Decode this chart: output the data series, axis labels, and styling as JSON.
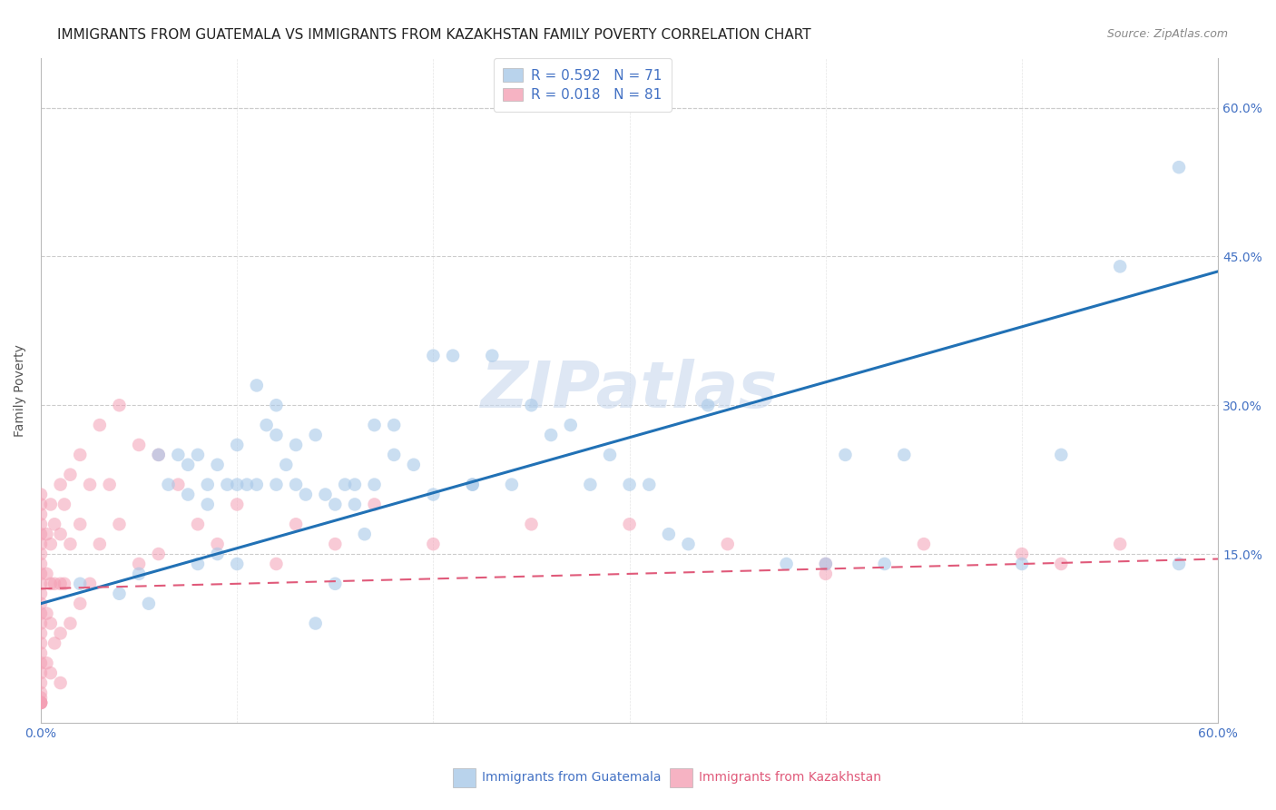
{
  "title": "IMMIGRANTS FROM GUATEMALA VS IMMIGRANTS FROM KAZAKHSTAN FAMILY POVERTY CORRELATION CHART",
  "source": "Source: ZipAtlas.com",
  "xlabel_blue": "Immigrants from Guatemala",
  "xlabel_pink": "Immigrants from Kazakhstan",
  "ylabel": "Family Poverty",
  "xlim": [
    0.0,
    0.6
  ],
  "ylim": [
    -0.02,
    0.65
  ],
  "color_blue": "#a8c8e8",
  "color_pink": "#f4a0b5",
  "color_blue_line": "#2171b5",
  "color_pink_line": "#e05a7a",
  "legend_R_blue": "R = 0.592",
  "legend_N_blue": "N = 71",
  "legend_R_pink": "R = 0.018",
  "legend_N_pink": "N = 81",
  "watermark": "ZIPatlas",
  "blue_line_y_start": 0.1,
  "blue_line_y_end": 0.435,
  "pink_line_y_start": 0.115,
  "pink_line_y_end": 0.145,
  "background_color": "#ffffff",
  "grid_color": "#cccccc",
  "title_fontsize": 11,
  "axis_label_fontsize": 10,
  "tick_label_fontsize": 10,
  "legend_fontsize": 11,
  "watermark_fontsize": 52,
  "watermark_color": "#c8d8ee",
  "watermark_alpha": 0.6,
  "blue_scatter_x": [
    0.02,
    0.04,
    0.05,
    0.055,
    0.06,
    0.065,
    0.07,
    0.075,
    0.075,
    0.08,
    0.08,
    0.085,
    0.085,
    0.09,
    0.09,
    0.095,
    0.1,
    0.1,
    0.1,
    0.105,
    0.11,
    0.11,
    0.115,
    0.12,
    0.12,
    0.12,
    0.125,
    0.13,
    0.13,
    0.135,
    0.14,
    0.14,
    0.145,
    0.15,
    0.15,
    0.155,
    0.16,
    0.16,
    0.165,
    0.17,
    0.17,
    0.18,
    0.18,
    0.19,
    0.2,
    0.2,
    0.21,
    0.22,
    0.22,
    0.23,
    0.24,
    0.25,
    0.26,
    0.27,
    0.28,
    0.29,
    0.3,
    0.31,
    0.32,
    0.33,
    0.34,
    0.38,
    0.4,
    0.41,
    0.43,
    0.44,
    0.5,
    0.52,
    0.58,
    0.58,
    0.55
  ],
  "blue_scatter_y": [
    0.12,
    0.11,
    0.13,
    0.1,
    0.25,
    0.22,
    0.25,
    0.24,
    0.21,
    0.25,
    0.14,
    0.22,
    0.2,
    0.24,
    0.15,
    0.22,
    0.26,
    0.22,
    0.14,
    0.22,
    0.32,
    0.22,
    0.28,
    0.3,
    0.27,
    0.22,
    0.24,
    0.26,
    0.22,
    0.21,
    0.27,
    0.08,
    0.21,
    0.2,
    0.12,
    0.22,
    0.22,
    0.2,
    0.17,
    0.28,
    0.22,
    0.28,
    0.25,
    0.24,
    0.35,
    0.21,
    0.35,
    0.22,
    0.22,
    0.35,
    0.22,
    0.3,
    0.27,
    0.28,
    0.22,
    0.25,
    0.22,
    0.22,
    0.17,
    0.16,
    0.3,
    0.14,
    0.14,
    0.25,
    0.14,
    0.25,
    0.14,
    0.25,
    0.54,
    0.14,
    0.44
  ],
  "pink_scatter_x": [
    0.0,
    0.0,
    0.0,
    0.0,
    0.0,
    0.0,
    0.0,
    0.0,
    0.0,
    0.0,
    0.0,
    0.0,
    0.0,
    0.0,
    0.0,
    0.0,
    0.0,
    0.0,
    0.0,
    0.0,
    0.0,
    0.0,
    0.0,
    0.0,
    0.0,
    0.0,
    0.0,
    0.003,
    0.003,
    0.003,
    0.003,
    0.005,
    0.005,
    0.005,
    0.005,
    0.005,
    0.007,
    0.007,
    0.007,
    0.01,
    0.01,
    0.01,
    0.01,
    0.01,
    0.012,
    0.012,
    0.015,
    0.015,
    0.015,
    0.02,
    0.02,
    0.02,
    0.025,
    0.025,
    0.03,
    0.03,
    0.035,
    0.04,
    0.04,
    0.05,
    0.05,
    0.06,
    0.06,
    0.07,
    0.08,
    0.09,
    0.1,
    0.12,
    0.13,
    0.15,
    0.17,
    0.2,
    0.25,
    0.3,
    0.35,
    0.4,
    0.45,
    0.5,
    0.52,
    0.55,
    0.4
  ],
  "pink_scatter_y": [
    0.21,
    0.2,
    0.19,
    0.18,
    0.17,
    0.16,
    0.15,
    0.14,
    0.13,
    0.12,
    0.11,
    0.1,
    0.09,
    0.08,
    0.07,
    0.06,
    0.05,
    0.04,
    0.03,
    0.02,
    0.01,
    0.005,
    0.0,
    0.0,
    0.0,
    0.0,
    0.0,
    0.17,
    0.13,
    0.09,
    0.04,
    0.2,
    0.16,
    0.12,
    0.08,
    0.03,
    0.18,
    0.12,
    0.06,
    0.22,
    0.17,
    0.12,
    0.07,
    0.02,
    0.2,
    0.12,
    0.23,
    0.16,
    0.08,
    0.25,
    0.18,
    0.1,
    0.22,
    0.12,
    0.28,
    0.16,
    0.22,
    0.3,
    0.18,
    0.26,
    0.14,
    0.25,
    0.15,
    0.22,
    0.18,
    0.16,
    0.2,
    0.14,
    0.18,
    0.16,
    0.2,
    0.16,
    0.18,
    0.18,
    0.16,
    0.14,
    0.16,
    0.15,
    0.14,
    0.16,
    0.13
  ]
}
